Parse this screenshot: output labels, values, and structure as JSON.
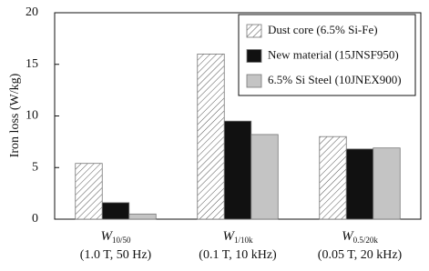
{
  "chart_data": {
    "type": "bar",
    "y_label": "Iron loss (W/kg)",
    "categories": [
      {
        "symbol": "W",
        "subscript": "10/50",
        "condition": "(1.0 T, 50 Hz)"
      },
      {
        "symbol": "W",
        "subscript": "1/10k",
        "condition": "(0.1 T, 10 kHz)"
      },
      {
        "symbol": "W",
        "subscript": "0.5/20k",
        "condition": "(0.05 T, 20 kHz)"
      }
    ],
    "series": [
      {
        "name": "Dust core (6.5% Si-Fe)",
        "color": "#ffffff",
        "pattern": "hatch",
        "values": [
          5.4,
          16.0,
          8.0
        ]
      },
      {
        "name": "New material (15JNSF950)",
        "color": "#111111",
        "pattern": "solid",
        "values": [
          1.6,
          9.5,
          6.8
        ]
      },
      {
        "name": "6.5% Si Steel (10JNEX900)",
        "color": "#c4c4c4",
        "pattern": "solid",
        "values": [
          0.5,
          8.2,
          6.9
        ]
      }
    ],
    "ylim": [
      0,
      20
    ],
    "yticks": [
      0,
      5,
      10,
      15,
      20
    ],
    "grid": false,
    "legend": "upper right"
  }
}
